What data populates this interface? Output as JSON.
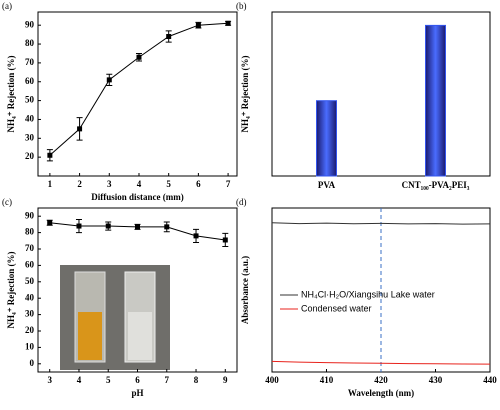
{
  "chart_data": [
    {
      "type": "line",
      "panel_label": "(a)",
      "x_label": "Diffusion distance (mm)",
      "y_label": "NH₄⁺ Rejection (%)",
      "x": [
        1,
        2,
        3,
        4,
        5,
        6,
        7
      ],
      "values": [
        21,
        35,
        61,
        73,
        84,
        90,
        91
      ],
      "errors": [
        3,
        6,
        3,
        2,
        3,
        1.5,
        1
      ],
      "color": "#000000",
      "xlim": [
        0.6,
        7.3
      ],
      "xticks": [
        1,
        2,
        3,
        4,
        5,
        6,
        7
      ],
      "ylim": [
        10,
        97
      ],
      "yticks": [
        20,
        30,
        40,
        50,
        60,
        70,
        80,
        90
      ]
    },
    {
      "type": "bar",
      "panel_label": "(b)",
      "y_label": "NH₄⁺ Rejection (%)",
      "categories": [
        "PVA",
        "CNT₁₀₀-PVA₂PEI₃"
      ],
      "values": [
        45,
        90
      ],
      "color": "#3355ee",
      "ylim": [
        0,
        98
      ]
    },
    {
      "type": "line",
      "panel_label": "(c)",
      "x_label": "pH",
      "y_label": "NH₄⁺ Rejection (%)",
      "x": [
        3,
        4,
        5,
        6,
        7,
        8,
        9
      ],
      "values": [
        86,
        84,
        84,
        83.5,
        83.5,
        78,
        75.5
      ],
      "errors": [
        1.5,
        4,
        2.5,
        1.5,
        3,
        4,
        4
      ],
      "color": "#000000",
      "xlim": [
        2.6,
        9.4
      ],
      "xticks": [
        3,
        4,
        5,
        6,
        7,
        8,
        9
      ],
      "ylim": [
        -5,
        95
      ],
      "yticks": [
        0,
        10,
        20,
        30,
        40,
        50,
        60,
        70,
        80,
        90
      ]
    },
    {
      "type": "line",
      "panel_label": "(d)",
      "x_label": "Wavelength (nm)",
      "y_label": "Absorbance (a.u.)",
      "x": [
        400,
        405,
        410,
        415,
        420,
        425,
        430,
        435,
        440
      ],
      "series": [
        {
          "name": "NH₄Cl·H₂O/Xiangsihu Lake water",
          "color": "#333333",
          "values": [
            0.91,
            0.905,
            0.908,
            0.904,
            0.906,
            0.903,
            0.905,
            0.902,
            0.903
          ]
        },
        {
          "name": "Condensed water",
          "color": "#e8231c",
          "values": [
            0.065,
            0.06,
            0.057,
            0.055,
            0.053,
            0.051,
            0.05,
            0.049,
            0.048
          ]
        }
      ],
      "xlim": [
        400,
        440
      ],
      "xticks": [
        400,
        410,
        420,
        430,
        440
      ],
      "ylim": [
        0,
        1
      ],
      "vline": 420,
      "vline_color": "#3a6fc4",
      "legend": "center-left"
    }
  ]
}
